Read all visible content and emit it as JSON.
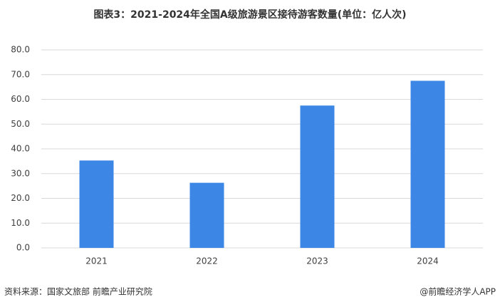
{
  "chart_data": {
    "type": "bar",
    "title": "图表3：2021-2024年全国A级旅游景区接待游客数量(单位：亿人次)",
    "categories": [
      "2021",
      "2022",
      "2023",
      "2024"
    ],
    "values": [
      35.3,
      26.3,
      57.5,
      67.5
    ],
    "color": "#3c87e6",
    "ylim": [
      0,
      80
    ],
    "yticks": [
      {
        "value": 0,
        "label": "0.0"
      },
      {
        "value": 10,
        "label": "10.0"
      },
      {
        "value": 20,
        "label": "20.0"
      },
      {
        "value": 30,
        "label": "30.0"
      },
      {
        "value": 40,
        "label": "40.0"
      },
      {
        "value": 50,
        "label": "50.0"
      },
      {
        "value": 60,
        "label": "60.0"
      },
      {
        "value": 70,
        "label": "70.0"
      },
      {
        "value": 80,
        "label": "80.0"
      }
    ],
    "grid": true,
    "source": "资料来源：国家文旅部 前瞻产业研究院",
    "credit": "@前瞻经济学人APP"
  }
}
